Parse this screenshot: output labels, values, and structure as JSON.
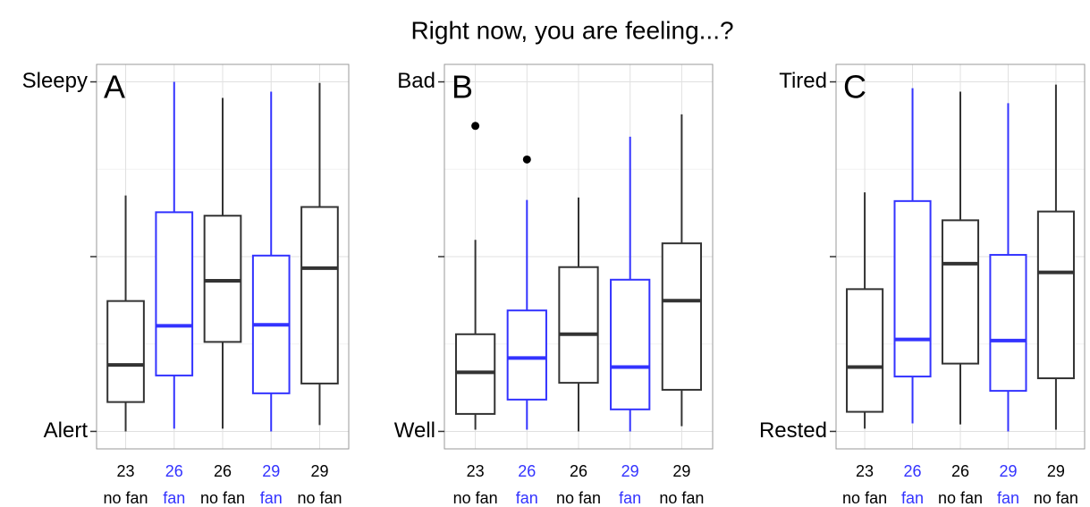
{
  "title": "Right now, you are feeling...?",
  "chart_data": [
    {
      "type": "box",
      "panel_label": "A",
      "ylim": [
        -5,
        105
      ],
      "yticks": [
        {
          "value": 0,
          "label": "Alert"
        },
        {
          "value": 50,
          "label": null
        },
        {
          "value": 100,
          "label": "Sleepy"
        }
      ],
      "grid": true,
      "categories": [
        [
          "23",
          "no fan"
        ],
        [
          "26",
          "fan"
        ],
        [
          "26",
          "no fan"
        ],
        [
          "29",
          "fan"
        ],
        [
          "29",
          "no fan"
        ]
      ],
      "boxes": [
        {
          "color": "#333333",
          "min": 0,
          "q1": 8.4,
          "median": 19,
          "q3": 37.3,
          "max": 67.5
        },
        {
          "color": "#3333ff",
          "min": 0.8,
          "q1": 16,
          "median": 30.2,
          "q3": 62.7,
          "max": 100
        },
        {
          "color": "#333333",
          "min": 0.8,
          "q1": 25.6,
          "median": 43.1,
          "q3": 61.7,
          "max": 95.4
        },
        {
          "color": "#3333ff",
          "min": 0,
          "q1": 10.9,
          "median": 30.5,
          "q3": 50.3,
          "max": 97.2
        },
        {
          "color": "#333333",
          "min": 1.8,
          "q1": 13.7,
          "median": 46.7,
          "q3": 64.2,
          "max": 99.7
        }
      ]
    },
    {
      "type": "box",
      "panel_label": "B",
      "ylim": [
        -5,
        105
      ],
      "yticks": [
        {
          "value": 0,
          "label": "Well"
        },
        {
          "value": 50,
          "label": null
        },
        {
          "value": 100,
          "label": "Bad"
        }
      ],
      "grid": true,
      "categories": [
        [
          "23",
          "no fan"
        ],
        [
          "26",
          "fan"
        ],
        [
          "26",
          "no fan"
        ],
        [
          "29",
          "fan"
        ],
        [
          "29",
          "no fan"
        ]
      ],
      "boxes": [
        {
          "color": "#333333",
          "min": 0.5,
          "q1": 5,
          "median": 16.9,
          "q3": 27.8,
          "max": 54.8,
          "outliers": [
            87.4
          ]
        },
        {
          "color": "#3333ff",
          "min": 0.5,
          "q1": 9.1,
          "median": 21,
          "q3": 34.6,
          "max": 66.2,
          "outliers": [
            77.8
          ]
        },
        {
          "color": "#333333",
          "min": 0,
          "q1": 13.9,
          "median": 27.8,
          "q3": 47,
          "max": 66.9
        },
        {
          "color": "#3333ff",
          "min": 0,
          "q1": 6.3,
          "median": 18.4,
          "q3": 43.4,
          "max": 84.3
        },
        {
          "color": "#333333",
          "min": 1.5,
          "q1": 11.9,
          "median": 37.4,
          "q3": 53.8,
          "max": 90.7
        }
      ]
    },
    {
      "type": "box",
      "panel_label": "C",
      "ylim": [
        -5,
        105
      ],
      "yticks": [
        {
          "value": 0,
          "label": "Rested"
        },
        {
          "value": 50,
          "label": null
        },
        {
          "value": 100,
          "label": "Tired"
        }
      ],
      "grid": true,
      "categories": [
        [
          "23",
          "no fan"
        ],
        [
          "26",
          "fan"
        ],
        [
          "26",
          "no fan"
        ],
        [
          "29",
          "fan"
        ],
        [
          "29",
          "no fan"
        ]
      ],
      "boxes": [
        {
          "color": "#333333",
          "min": 0.8,
          "q1": 5.6,
          "median": 18.4,
          "q3": 40.7,
          "max": 68.4
        },
        {
          "color": "#3333ff",
          "min": 2.3,
          "q1": 15.7,
          "median": 26.3,
          "q3": 65.9,
          "max": 98.2
        },
        {
          "color": "#333333",
          "min": 2,
          "q1": 19.4,
          "median": 48,
          "q3": 60.4,
          "max": 97.2
        },
        {
          "color": "#3333ff",
          "min": 0,
          "q1": 11.6,
          "median": 26,
          "q3": 50.5,
          "max": 93.9
        },
        {
          "color": "#333333",
          "min": 0.5,
          "q1": 15.2,
          "median": 45.5,
          "q3": 62.9,
          "max": 99.2
        }
      ]
    }
  ]
}
